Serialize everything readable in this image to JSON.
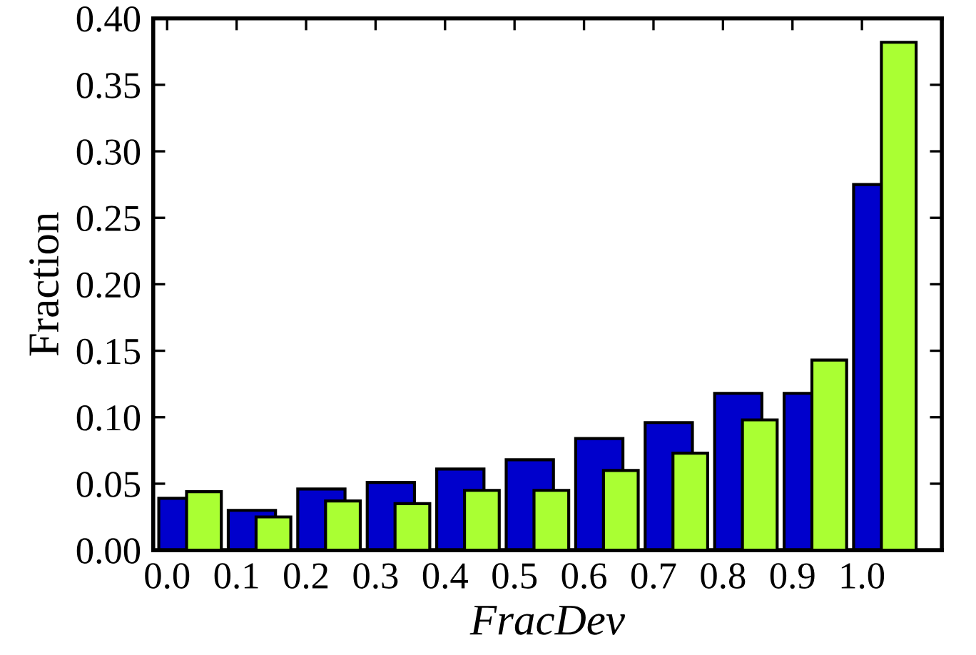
{
  "chart_data": {
    "type": "bar",
    "xlabel": "FracDev",
    "ylabel": "Fraction",
    "series": [
      {
        "color": "#0000cc",
        "x": [
          0.022,
          0.122,
          0.222,
          0.322,
          0.422,
          0.522,
          0.622,
          0.722,
          0.822,
          0.922,
          1.022
        ],
        "values": [
          0.039,
          0.03,
          0.046,
          0.051,
          0.061,
          0.068,
          0.084,
          0.096,
          0.118,
          0.118,
          0.275
        ]
      },
      {
        "color": "#aaff33",
        "x": [
          0.053,
          0.153,
          0.253,
          0.353,
          0.453,
          0.553,
          0.653,
          0.753,
          0.853,
          0.953,
          1.053
        ],
        "values": [
          0.044,
          0.025,
          0.037,
          0.035,
          0.045,
          0.045,
          0.06,
          0.073,
          0.098,
          0.143,
          0.382
        ]
      }
    ],
    "xlim": [
      -0.02,
      1.115
    ],
    "xticks": [
      {
        "value": 0.0,
        "label": "0.0"
      },
      0.1,
      0.2,
      0.3,
      0.4,
      0.5,
      0.6,
      0.7,
      0.8,
      0.9,
      {
        "value": 1.0,
        "label": "1.0"
      }
    ],
    "ylim": [
      0.0,
      0.4
    ],
    "yticks": [
      {
        "value": 0.0,
        "label": "0.00"
      },
      0.05,
      {
        "value": 0.1,
        "label": "0.10"
      },
      0.15,
      {
        "value": 0.2,
        "label": "0.20"
      },
      0.25,
      {
        "value": 0.3,
        "label": "0.30"
      },
      0.35,
      {
        "value": 0.4,
        "label": "0.40"
      }
    ],
    "grid": false,
    "legend": false
  }
}
